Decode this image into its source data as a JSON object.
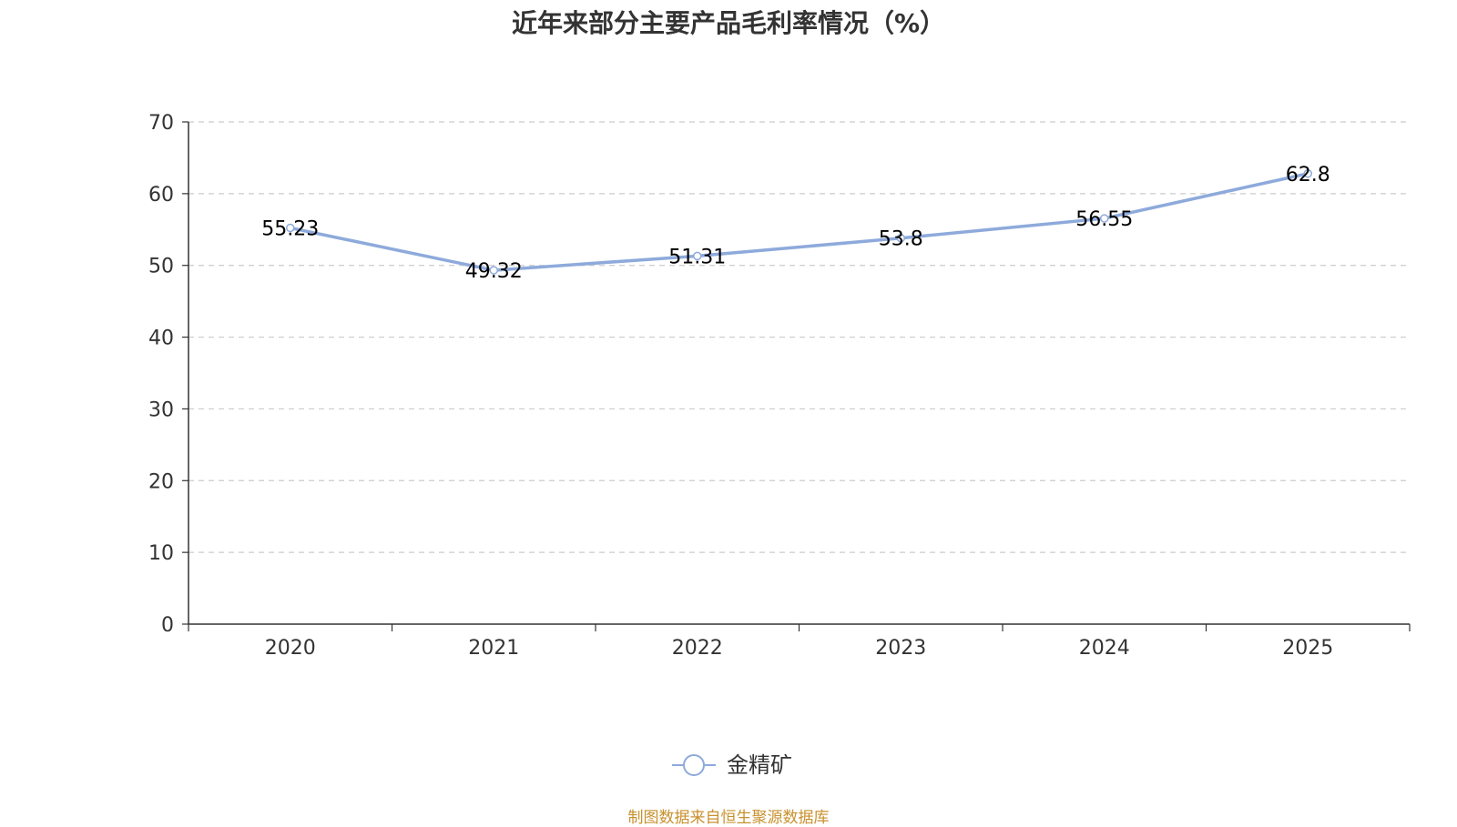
{
  "chart_data": {
    "type": "line",
    "title": "近年来部分主要产品毛利率情况（%）",
    "source": "制图数据来自恒生聚源数据库",
    "categories": [
      "2020",
      "2021",
      "2022",
      "2023",
      "2024",
      "2025"
    ],
    "series": [
      {
        "name": "金精矿",
        "values": [
          55.23,
          49.32,
          51.31,
          53.8,
          56.55,
          62.8
        ],
        "color": "#8eaadb"
      }
    ],
    "ylim": [
      0,
      70
    ],
    "yticks": [
      0,
      10,
      20,
      30,
      40,
      50,
      60,
      70
    ],
    "grid": true,
    "legend_position": "bottom"
  }
}
